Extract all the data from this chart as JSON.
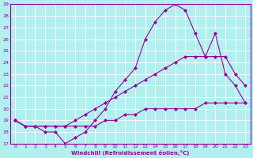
{
  "xlabel": "Windchill (Refroidissement éolien,°C)",
  "bg_color": "#b2efef",
  "line_color": "#990099",
  "grid_color": "#ffffff",
  "xlim": [
    -0.5,
    23.5
  ],
  "ylim": [
    17,
    29
  ],
  "xticks": [
    0,
    1,
    2,
    3,
    4,
    5,
    6,
    7,
    8,
    9,
    10,
    11,
    12,
    13,
    14,
    15,
    16,
    17,
    18,
    19,
    20,
    21,
    22,
    23
  ],
  "yticks": [
    17,
    18,
    19,
    20,
    21,
    22,
    23,
    24,
    25,
    26,
    27,
    28,
    29
  ],
  "line1_x": [
    0,
    1,
    2,
    3,
    4,
    5,
    6,
    7,
    8,
    9,
    10,
    11,
    12,
    13,
    14,
    15,
    16,
    17,
    18,
    19,
    20,
    21,
    22,
    23
  ],
  "line1_y": [
    19.0,
    18.5,
    18.5,
    18.0,
    18.0,
    17.0,
    17.5,
    18.0,
    19.0,
    20.0,
    21.5,
    22.5,
    23.5,
    26.0,
    27.5,
    28.5,
    29.0,
    28.5,
    26.5,
    24.5,
    26.5,
    23.0,
    22.0,
    20.5
  ],
  "line2_x": [
    0,
    1,
    2,
    3,
    4,
    5,
    6,
    7,
    8,
    9,
    10,
    11,
    12,
    13,
    14,
    15,
    16,
    17,
    18,
    19,
    20,
    21,
    22,
    23
  ],
  "line2_y": [
    19.0,
    18.5,
    18.5,
    18.5,
    18.5,
    18.5,
    19.0,
    19.5,
    20.0,
    20.5,
    21.0,
    21.5,
    22.0,
    22.5,
    23.0,
    23.5,
    24.0,
    24.5,
    24.5,
    24.5,
    24.5,
    24.5,
    23.0,
    22.0
  ],
  "line3_x": [
    0,
    1,
    2,
    3,
    4,
    5,
    6,
    7,
    8,
    9,
    10,
    11,
    12,
    13,
    14,
    15,
    16,
    17,
    18,
    19,
    20,
    21,
    22,
    23
  ],
  "line3_y": [
    19.0,
    18.5,
    18.5,
    18.5,
    18.5,
    18.5,
    18.5,
    18.5,
    18.5,
    19.0,
    19.0,
    19.5,
    19.5,
    20.0,
    20.0,
    20.0,
    20.0,
    20.0,
    20.0,
    20.5,
    20.5,
    20.5,
    20.5,
    20.5
  ]
}
